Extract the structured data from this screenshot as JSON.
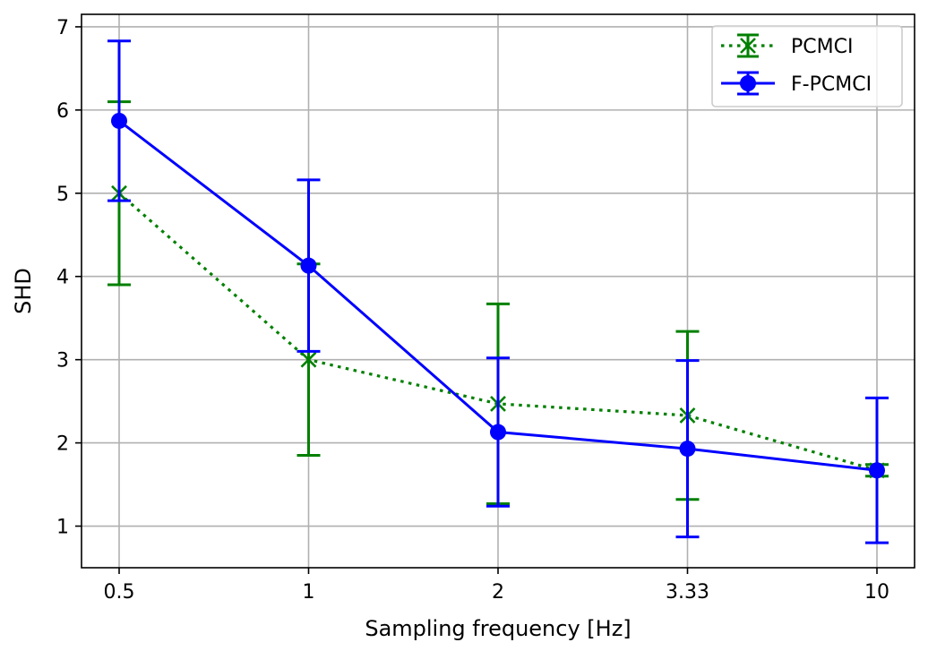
{
  "chart_data": {
    "type": "line",
    "title": "",
    "xlabel": "Sampling frequency [Hz]",
    "ylabel": "SHD",
    "categories": [
      "0.5",
      "1",
      "2",
      "3.33",
      "10"
    ],
    "ylim": [
      0.5,
      7.15
    ],
    "yticks": [
      1,
      2,
      3,
      4,
      5,
      6,
      7
    ],
    "grid": true,
    "legend_position": "top-right",
    "series": [
      {
        "name": "PCMCI",
        "color": "#008000",
        "line_style": "dotted",
        "marker": "x",
        "values": [
          5.0,
          3.0,
          2.47,
          2.33,
          1.67
        ],
        "error": [
          1.1,
          1.15,
          1.2,
          1.01,
          0.07
        ]
      },
      {
        "name": "F-PCMCI",
        "color": "#0000ff",
        "line_style": "solid",
        "marker": "circle",
        "values": [
          5.87,
          4.13,
          2.13,
          1.93,
          1.67
        ],
        "error": [
          0.96,
          1.03,
          0.89,
          1.06,
          0.87
        ]
      }
    ]
  }
}
